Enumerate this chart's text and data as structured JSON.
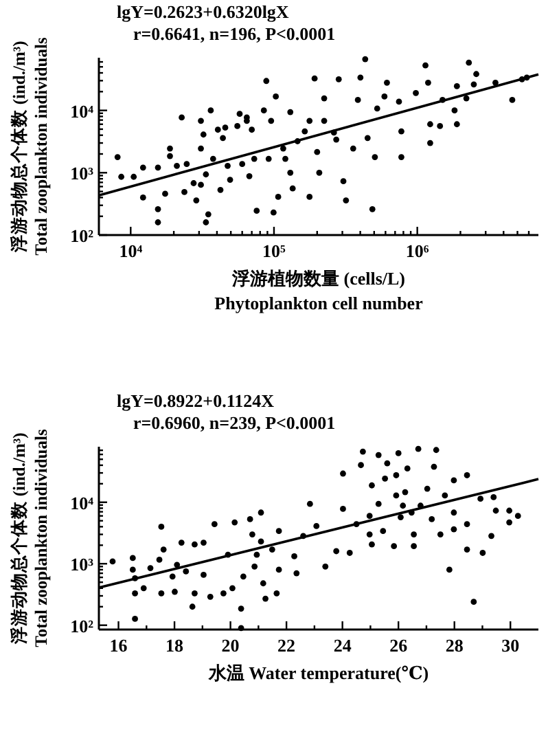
{
  "chart_data": [
    {
      "type": "scatter",
      "xlabel": "浮游植物数量 (cells/L)\nPhytoplankton cell number",
      "ylabel": "浮游动物总个体数 (ind./m³)\nTotal zooplankton individuals",
      "annotations": [
        "lgY=0.2623+0.6320lgX",
        "r=0.6641, n=196, P<0.0001"
      ],
      "log": "xy",
      "xlim": [
        6000,
        7000000
      ],
      "ylim": [
        100,
        70000
      ],
      "xticks": [
        {
          "value": 10000,
          "label": "10⁴"
        },
        {
          "value": 20000,
          "label": null
        },
        {
          "value": 30000,
          "label": null
        },
        {
          "value": 40000,
          "label": null
        },
        {
          "value": 50000,
          "label": null
        },
        {
          "value": 60000,
          "label": null
        },
        {
          "value": 70000,
          "label": null
        },
        {
          "value": 80000,
          "label": null
        },
        {
          "value": 90000,
          "label": null
        },
        {
          "value": 100000,
          "label": "10⁵"
        },
        {
          "value": 200000,
          "label": null
        },
        {
          "value": 300000,
          "label": null
        },
        {
          "value": 400000,
          "label": null
        },
        {
          "value": 500000,
          "label": null
        },
        {
          "value": 600000,
          "label": null
        },
        {
          "value": 700000,
          "label": null
        },
        {
          "value": 800000,
          "label": null
        },
        {
          "value": 900000,
          "label": null
        },
        {
          "value": 1000000,
          "label": "10⁶"
        },
        {
          "value": 2000000,
          "label": null
        },
        {
          "value": 3000000,
          "label": null
        },
        {
          "value": 4000000,
          "label": null
        },
        {
          "value": 5000000,
          "label": null
        },
        {
          "value": 6000000,
          "label": null
        }
      ],
      "yticks": [
        {
          "value": 100,
          "label": "10²"
        },
        {
          "value": 200,
          "label": null
        },
        {
          "value": 300,
          "label": null
        },
        {
          "value": 400,
          "label": null
        },
        {
          "value": 500,
          "label": null
        },
        {
          "value": 600,
          "label": null
        },
        {
          "value": 700,
          "label": null
        },
        {
          "value": 800,
          "label": null
        },
        {
          "value": 900,
          "label": null
        },
        {
          "value": 1000,
          "label": "10³"
        },
        {
          "value": 2000,
          "label": null
        },
        {
          "value": 3000,
          "label": null
        },
        {
          "value": 4000,
          "label": null
        },
        {
          "value": 5000,
          "label": null
        },
        {
          "value": 6000,
          "label": null
        },
        {
          "value": 7000,
          "label": null
        },
        {
          "value": 8000,
          "label": null
        },
        {
          "value": 9000,
          "label": null
        },
        {
          "value": 10000,
          "label": "10⁴"
        },
        {
          "value": 20000,
          "label": null
        },
        {
          "value": 30000,
          "label": null
        },
        {
          "value": 40000,
          "label": null
        },
        {
          "value": 50000,
          "label": null
        },
        {
          "value": 60000,
          "label": null
        }
      ],
      "series": [
        {
          "type": "scatter",
          "color": "#000000",
          "marker": "circle",
          "x": [
            8100,
            8600,
            10500,
            12200,
            12200,
            15500,
            15500,
            15500,
            17400,
            18800,
            18800,
            22700,
            23700,
            24600,
            27500,
            28700,
            30900,
            30900,
            30900,
            32200,
            33500,
            33500,
            34800,
            36200,
            37600,
            42300,
            44000,
            45700,
            47500,
            49400,
            55500,
            57600,
            60000,
            64600,
            67300,
            70000,
            72800,
            75700,
            85000,
            88400,
            91800,
            95500,
            99300,
            103000,
            107000,
            116000,
            120000,
            130000,
            130000,
            135000,
            146000,
            164000,
            177000,
            192000,
            200000,
            207000,
            224000,
            224000,
            262000,
            272000,
            283000,
            305000,
            318000,
            357000,
            385000,
            401000,
            433000,
            450000,
            486000,
            506000,
            525000,
            590000,
            614000,
            745000,
            774000,
            774000,
            977000,
            1140000,
            1190000,
            1230000,
            1230000,
            1440000,
            1500000,
            1820000,
            1890000,
            1890000,
            2200000,
            2290000,
            2480000,
            2580000,
            3510000,
            4600000,
            5380000,
            5810000,
            64600,
            40600,
            21000,
            177000
          ],
          "values": [
            1780,
            860,
            860,
            1210,
            400,
            1210,
            260,
            160,
            460,
            2450,
            1850,
            7700,
            490,
            1380,
            680,
            360,
            6800,
            2450,
            640,
            4100,
            940,
            160,
            215,
            10000,
            1670,
            530,
            3600,
            5300,
            1290,
            770,
            5600,
            8800,
            1380,
            6800,
            880,
            4900,
            1670,
            245,
            10000,
            29700,
            1670,
            6800,
            230,
            16700,
            410,
            2450,
            1670,
            1000,
            9400,
            560,
            3200,
            4600,
            410,
            32500,
            2150,
            1000,
            15600,
            6800,
            4400,
            3400,
            31600,
            730,
            360,
            2450,
            14700,
            33700,
            66400,
            3600,
            260,
            1780,
            10700,
            16700,
            27800,
            13800,
            4600,
            1780,
            19000,
            52700,
            27800,
            6000,
            3000,
            5600,
            14700,
            10000,
            6000,
            24500,
            15600,
            58400,
            26100,
            38300,
            27800,
            14700,
            31600,
            33700,
            7700,
            4900,
            1290,
            6800
          ]
        },
        {
          "type": "line",
          "color": "#000000",
          "marker": "none",
          "line_style": "solid",
          "x": [
            6000,
            7000000
          ],
          "values": [
            434,
            37800
          ]
        }
      ]
    },
    {
      "type": "scatter",
      "xlabel": "水温 Water temperature(℃)",
      "ylabel": "浮游动物总个体数 (ind./m³)\nTotal zooplankton individuals",
      "annotations": [
        "lgY=0.8922+0.1124X",
        "r=0.6960, n=239, P<0.0001"
      ],
      "log": "y",
      "xlim": [
        15.3,
        31
      ],
      "ylim": [
        85,
        80000
      ],
      "xticks": [
        16,
        {
          "value": 17,
          "label": null
        },
        18,
        {
          "value": 19,
          "label": null
        },
        20,
        {
          "value": 21,
          "label": null
        },
        22,
        {
          "value": 23,
          "label": null
        },
        24,
        {
          "value": 25,
          "label": null
        },
        26,
        {
          "value": 27,
          "label": null
        },
        28,
        {
          "value": 29,
          "label": null
        },
        30
      ],
      "yticks": [
        {
          "value": 100,
          "label": "10²"
        },
        {
          "value": 200,
          "label": null
        },
        {
          "value": 300,
          "label": null
        },
        {
          "value": 400,
          "label": null
        },
        {
          "value": 500,
          "label": null
        },
        {
          "value": 600,
          "label": null
        },
        {
          "value": 700,
          "label": null
        },
        {
          "value": 800,
          "label": null
        },
        {
          "value": 900,
          "label": null
        },
        {
          "value": 1000,
          "label": "10³"
        },
        {
          "value": 2000,
          "label": null
        },
        {
          "value": 3000,
          "label": null
        },
        {
          "value": 4000,
          "label": null
        },
        {
          "value": 5000,
          "label": null
        },
        {
          "value": 6000,
          "label": null
        },
        {
          "value": 7000,
          "label": null
        },
        {
          "value": 8000,
          "label": null
        },
        {
          "value": 9000,
          "label": null
        },
        {
          "value": 10000,
          "label": "10⁴"
        },
        {
          "value": 20000,
          "label": null
        },
        {
          "value": 30000,
          "label": null
        },
        {
          "value": 40000,
          "label": null
        },
        {
          "value": 50000,
          "label": null
        },
        {
          "value": 60000,
          "label": null
        },
        {
          "value": 70000,
          "label": null
        }
      ],
      "series": [
        {
          "type": "scatter",
          "color": "#000000",
          "marker": "circle",
          "x": [
            15.79,
            16.51,
            16.51,
            16.59,
            16.59,
            16.59,
            16.9,
            17.14,
            17.46,
            17.53,
            17.53,
            17.61,
            17.93,
            18.01,
            18.09,
            18.25,
            18.41,
            18.64,
            18.72,
            18.72,
            19.04,
            19.04,
            19.28,
            19.43,
            19.75,
            19.91,
            20.15,
            20.07,
            20.38,
            20.38,
            20.46,
            20.7,
            20.78,
            20.86,
            20.94,
            21.09,
            21.09,
            21.17,
            21.25,
            21.49,
            21.65,
            21.73,
            21.73,
            22.28,
            22.36,
            22.6,
            22.84,
            23.07,
            23.39,
            23.78,
            24.02,
            24.02,
            24.26,
            24.5,
            24.66,
            24.73,
            24.97,
            24.97,
            25.05,
            25.05,
            25.29,
            25.29,
            25.52,
            25.6,
            25.84,
            25.92,
            26.0,
            26.08,
            26.16,
            26.24,
            26.32,
            26.55,
            26.55,
            26.71,
            26.79,
            27.03,
            27.19,
            27.27,
            27.35,
            27.5,
            27.66,
            27.82,
            27.98,
            27.98,
            27.98,
            28.45,
            28.45,
            28.45,
            28.69,
            28.93,
            29.01,
            29.32,
            29.4,
            29.48,
            29.96,
            29.96,
            30.27,
            25.92,
            26.47,
            25.45
          ],
          "values": [
            1090,
            1240,
            800,
            580,
            330,
            127,
            400,
            850,
            1160,
            4000,
            330,
            1700,
            620,
            350,
            960,
            2200,
            750,
            200,
            330,
            2060,
            2200,
            660,
            290,
            4400,
            330,
            1400,
            4700,
            400,
            186,
            90,
            620,
            5300,
            3000,
            900,
            1400,
            6800,
            2300,
            480,
            270,
            1700,
            330,
            3400,
            800,
            1320,
            700,
            2830,
            9400,
            4100,
            900,
            1600,
            29300,
            7800,
            1500,
            4400,
            40200,
            66700,
            6000,
            3000,
            2060,
            18800,
            58700,
            9400,
            24300,
            42900,
            1930,
            27500,
            62700,
            5700,
            8800,
            14600,
            35400,
            3000,
            1930,
            73800,
            8800,
            16600,
            5300,
            37800,
            70800,
            3000,
            12900,
            800,
            22700,
            6800,
            3630,
            27500,
            4400,
            1700,
            240,
            11400,
            1500,
            2830,
            12100,
            7300,
            7300,
            4700,
            6000,
            12900,
            6800,
            3400
          ]
        },
        {
          "type": "line",
          "color": "#000000",
          "marker": "none",
          "line_style": "solid",
          "x": [
            15.3,
            31
          ],
          "values": [
            409,
            23800
          ]
        }
      ]
    }
  ]
}
